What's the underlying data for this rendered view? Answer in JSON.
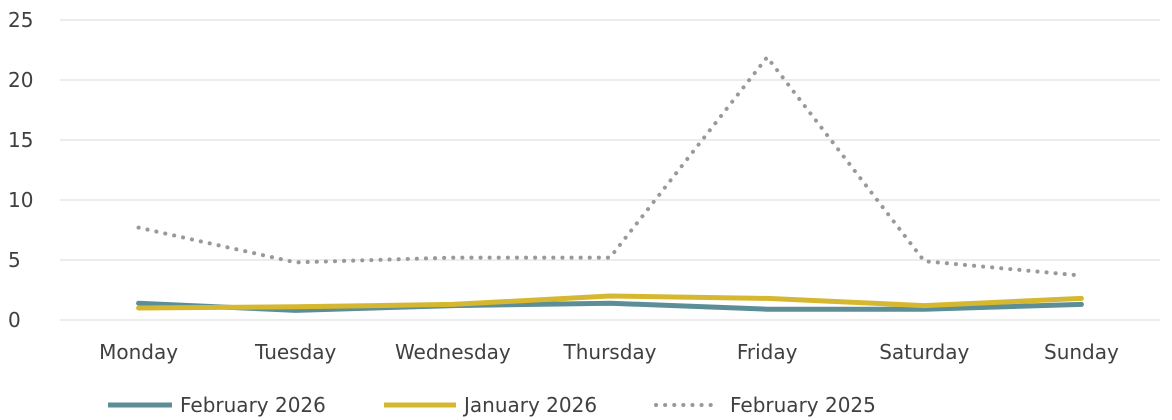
{
  "chart_data": {
    "type": "line",
    "title": "",
    "xlabel": "",
    "ylabel": "",
    "categories": [
      "Monday",
      "Tuesday",
      "Wednesday",
      "Thursday",
      "Friday",
      "Saturday",
      "Sunday"
    ],
    "ylim": [
      0,
      25
    ],
    "yticks": [
      "0",
      "5",
      "10",
      "15",
      "20",
      "25"
    ],
    "grid": true,
    "legend_position": "bottom",
    "series": [
      {
        "name": "February 2026",
        "color": "#5b8e96",
        "style": "solid",
        "values": [
          1.4,
          0.8,
          1.2,
          1.4,
          0.9,
          0.9,
          1.3
        ]
      },
      {
        "name": "January 2026",
        "color": "#d6b830",
        "style": "solid",
        "values": [
          1.0,
          1.1,
          1.3,
          2.0,
          1.8,
          1.2,
          1.8
        ]
      },
      {
        "name": "February 2025",
        "color": "#999999",
        "style": "dotted",
        "values": [
          7.7,
          4.8,
          5.2,
          5.2,
          21.9,
          4.9,
          3.7
        ]
      }
    ]
  }
}
